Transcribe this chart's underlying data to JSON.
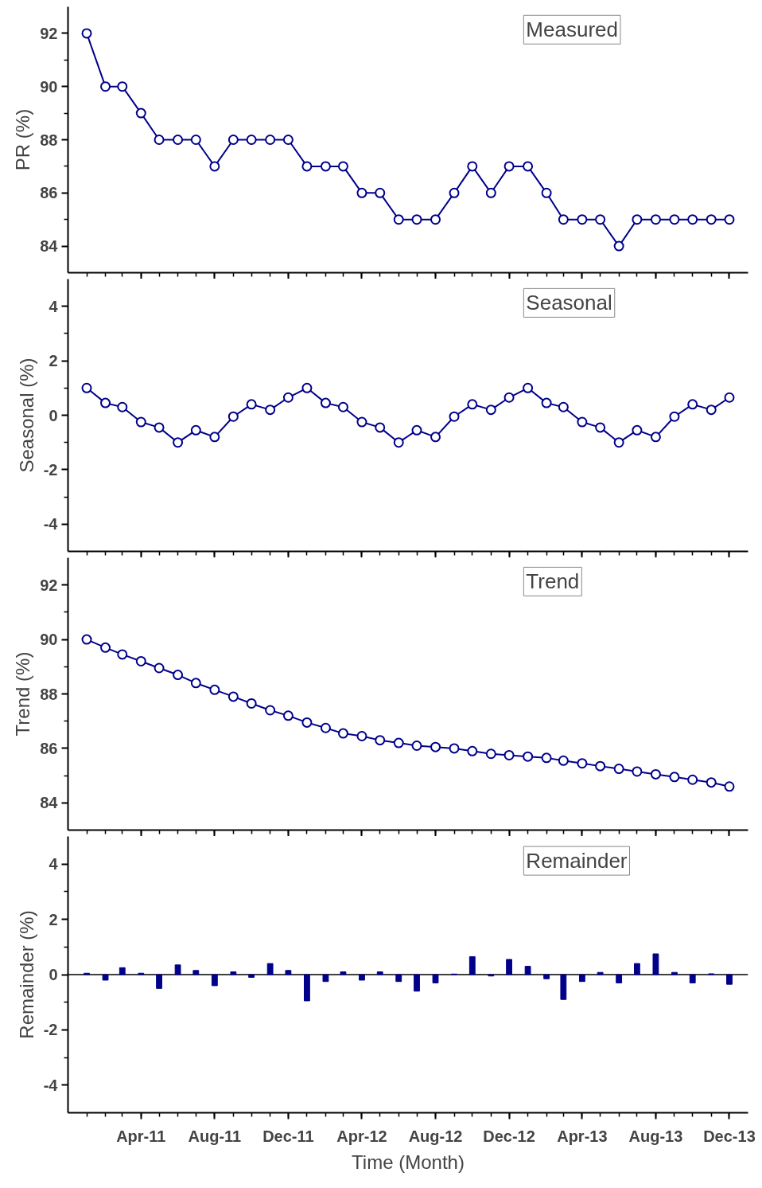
{
  "chart_data": [
    {
      "type": "line",
      "ylabel": "PR (%)",
      "annotations": [
        "Measured"
      ],
      "marker": "circle",
      "line_style": "solid",
      "tick_labels": "y",
      "x": [
        "2011-01",
        "2011-02",
        "2011-03",
        "2011-04",
        "2011-05",
        "2011-06",
        "2011-07",
        "2011-08",
        "2011-09",
        "2011-10",
        "2011-11",
        "2011-12",
        "2012-01",
        "2012-02",
        "2012-03",
        "2012-04",
        "2012-05",
        "2012-06",
        "2012-07",
        "2012-08",
        "2012-09",
        "2012-10",
        "2012-11",
        "2012-12",
        "2013-01",
        "2013-02",
        "2013-03",
        "2013-04",
        "2013-05",
        "2013-06",
        "2013-07",
        "2013-08",
        "2013-09",
        "2013-10",
        "2013-11",
        "2013-12"
      ],
      "series": [
        {
          "color": "#00008b",
          "values": [
            92,
            90,
            90,
            89,
            88,
            88,
            88,
            87,
            88,
            88,
            88,
            88,
            87,
            87,
            87,
            86,
            86,
            85,
            85,
            85,
            86,
            87,
            86,
            87,
            87,
            86,
            85,
            85,
            85,
            84,
            85,
            85,
            85,
            85,
            85,
            85
          ]
        }
      ],
      "xlim": [
        "2010-12",
        "2014-01"
      ],
      "xticks": [
        {
          "value": "2011-04",
          "label": null
        },
        {
          "value": "2011-08",
          "label": null
        },
        {
          "value": "2011-12",
          "label": null
        },
        {
          "value": "2012-04",
          "label": null
        },
        {
          "value": "2012-08",
          "label": null
        },
        {
          "value": "2012-12",
          "label": null
        },
        {
          "value": "2013-04",
          "label": null
        },
        {
          "value": "2013-08",
          "label": null
        },
        {
          "value": "2013-12",
          "label": null
        }
      ],
      "ylim": [
        83,
        93
      ],
      "yticks": [
        84,
        86,
        88,
        90,
        92
      ]
    },
    {
      "type": "line",
      "ylabel": "Seasonal (%)",
      "annotations": [
        "Seasonal"
      ],
      "marker": "circle",
      "line_style": "solid",
      "tick_labels": "y",
      "x": [
        "2011-01",
        "2011-02",
        "2011-03",
        "2011-04",
        "2011-05",
        "2011-06",
        "2011-07",
        "2011-08",
        "2011-09",
        "2011-10",
        "2011-11",
        "2011-12",
        "2012-01",
        "2012-02",
        "2012-03",
        "2012-04",
        "2012-05",
        "2012-06",
        "2012-07",
        "2012-08",
        "2012-09",
        "2012-10",
        "2012-11",
        "2012-12",
        "2013-01",
        "2013-02",
        "2013-03",
        "2013-04",
        "2013-05",
        "2013-06",
        "2013-07",
        "2013-08",
        "2013-09",
        "2013-10",
        "2013-11",
        "2013-12"
      ],
      "series": [
        {
          "color": "#00008b",
          "values": [
            1.0,
            0.45,
            0.3,
            -0.25,
            -0.45,
            -1.0,
            -0.55,
            -0.8,
            -0.05,
            0.4,
            0.2,
            0.65,
            1.0,
            0.45,
            0.3,
            -0.25,
            -0.45,
            -1.0,
            -0.55,
            -0.8,
            -0.05,
            0.4,
            0.2,
            0.65,
            1.0,
            0.45,
            0.3,
            -0.25,
            -0.45,
            -1.0,
            -0.55,
            -0.8,
            -0.05,
            0.4,
            0.2,
            0.65
          ]
        }
      ],
      "xlim": [
        "2010-12",
        "2014-01"
      ],
      "xticks": [
        {
          "value": "2011-04",
          "label": null
        },
        {
          "value": "2011-08",
          "label": null
        },
        {
          "value": "2011-12",
          "label": null
        },
        {
          "value": "2012-04",
          "label": null
        },
        {
          "value": "2012-08",
          "label": null
        },
        {
          "value": "2012-12",
          "label": null
        },
        {
          "value": "2013-04",
          "label": null
        },
        {
          "value": "2013-08",
          "label": null
        },
        {
          "value": "2013-12",
          "label": null
        }
      ],
      "ylim": [
        -5,
        5
      ],
      "yticks": [
        -4,
        -2,
        0,
        2,
        4
      ]
    },
    {
      "type": "line",
      "ylabel": "Trend (%)",
      "annotations": [
        "Trend"
      ],
      "marker": "circle",
      "line_style": "solid",
      "tick_labels": "y",
      "x": [
        "2011-01",
        "2011-02",
        "2011-03",
        "2011-04",
        "2011-05",
        "2011-06",
        "2011-07",
        "2011-08",
        "2011-09",
        "2011-10",
        "2011-11",
        "2011-12",
        "2012-01",
        "2012-02",
        "2012-03",
        "2012-04",
        "2012-05",
        "2012-06",
        "2012-07",
        "2012-08",
        "2012-09",
        "2012-10",
        "2012-11",
        "2012-12",
        "2013-01",
        "2013-02",
        "2013-03",
        "2013-04",
        "2013-05",
        "2013-06",
        "2013-07",
        "2013-08",
        "2013-09",
        "2013-10",
        "2013-11",
        "2013-12"
      ],
      "series": [
        {
          "color": "#00008b",
          "values": [
            90.0,
            89.7,
            89.45,
            89.2,
            88.95,
            88.7,
            88.4,
            88.15,
            87.9,
            87.65,
            87.4,
            87.2,
            86.95,
            86.75,
            86.55,
            86.45,
            86.3,
            86.2,
            86.1,
            86.05,
            86.0,
            85.9,
            85.8,
            85.75,
            85.7,
            85.65,
            85.55,
            85.45,
            85.35,
            85.25,
            85.15,
            85.05,
            84.95,
            84.85,
            84.75,
            84.6
          ]
        }
      ],
      "xlim": [
        "2010-12",
        "2014-01"
      ],
      "xticks": [
        {
          "value": "2011-04",
          "label": null
        },
        {
          "value": "2011-08",
          "label": null
        },
        {
          "value": "2011-12",
          "label": null
        },
        {
          "value": "2012-04",
          "label": null
        },
        {
          "value": "2012-08",
          "label": null
        },
        {
          "value": "2012-12",
          "label": null
        },
        {
          "value": "2013-04",
          "label": null
        },
        {
          "value": "2013-08",
          "label": null
        },
        {
          "value": "2013-12",
          "label": null
        }
      ],
      "ylim": [
        83,
        93
      ],
      "yticks": [
        84,
        86,
        88,
        90,
        92
      ]
    },
    {
      "type": "bar",
      "ylabel": "Remainder (%)",
      "xlabel": "Time (Month)",
      "annotations": [
        "Remainder"
      ],
      "x": [
        "2011-01",
        "2011-02",
        "2011-03",
        "2011-04",
        "2011-05",
        "2011-06",
        "2011-07",
        "2011-08",
        "2011-09",
        "2011-10",
        "2011-11",
        "2011-12",
        "2012-01",
        "2012-02",
        "2012-03",
        "2012-04",
        "2012-05",
        "2012-06",
        "2012-07",
        "2012-08",
        "2012-09",
        "2012-10",
        "2012-11",
        "2012-12",
        "2013-01",
        "2013-02",
        "2013-03",
        "2013-04",
        "2013-05",
        "2013-06",
        "2013-07",
        "2013-08",
        "2013-09",
        "2013-10",
        "2013-11",
        "2013-12"
      ],
      "series": [
        {
          "color": "#00008b",
          "values": [
            0.05,
            -0.2,
            0.25,
            0.05,
            -0.5,
            0.35,
            0.15,
            -0.4,
            0.1,
            -0.1,
            0.4,
            0.15,
            -0.95,
            -0.25,
            0.1,
            -0.2,
            0.1,
            -0.25,
            -0.6,
            -0.3,
            0.02,
            0.65,
            -0.05,
            0.55,
            0.3,
            -0.15,
            -0.9,
            -0.25,
            0.08,
            -0.3,
            0.4,
            0.75,
            0.08,
            -0.3,
            0.03,
            -0.35
          ]
        }
      ],
      "ref_lines": [
        {
          "axis": "y",
          "value": 0,
          "color": "#000000"
        }
      ],
      "xlim": [
        "2010-12",
        "2014-01"
      ],
      "xticks": [
        {
          "value": "2011-04",
          "label": "Apr-11"
        },
        {
          "value": "2011-08",
          "label": "Aug-11"
        },
        {
          "value": "2011-12",
          "label": "Dec-11"
        },
        {
          "value": "2012-04",
          "label": "Apr-12"
        },
        {
          "value": "2012-08",
          "label": "Aug-12"
        },
        {
          "value": "2012-12",
          "label": "Dec-12"
        },
        {
          "value": "2013-04",
          "label": "Apr-13"
        },
        {
          "value": "2013-08",
          "label": "Aug-13"
        },
        {
          "value": "2013-12",
          "label": "Dec-13"
        }
      ],
      "ylim": [
        -5,
        5
      ],
      "yticks": [
        -4,
        -2,
        0,
        2,
        4
      ]
    }
  ]
}
